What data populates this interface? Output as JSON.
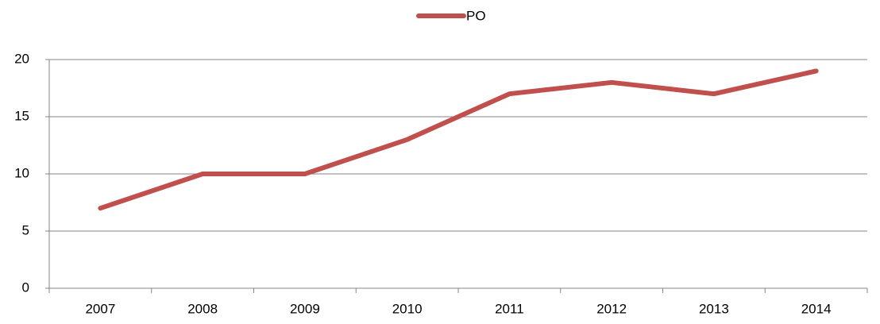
{
  "chart_data": {
    "type": "line",
    "categories": [
      "2007",
      "2008",
      "2009",
      "2010",
      "2011",
      "2012",
      "2013",
      "2014"
    ],
    "series": [
      {
        "name": "PO",
        "color": "#c0504d",
        "values": [
          7,
          10,
          10,
          13,
          17,
          18,
          17,
          19
        ]
      }
    ],
    "ylim": [
      0,
      20
    ],
    "yticks": [
      0,
      5,
      10,
      15,
      20
    ],
    "grid": true,
    "legend": "top"
  }
}
